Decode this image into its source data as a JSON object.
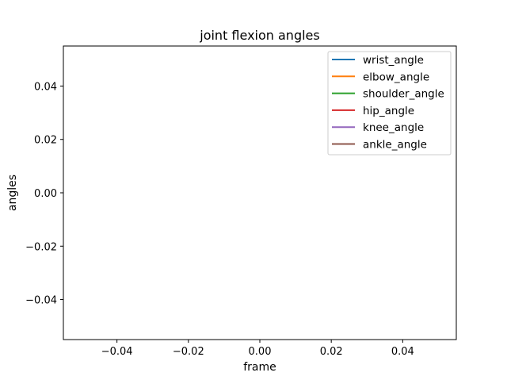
{
  "chart_data": {
    "type": "line",
    "title": "joint flexion angles",
    "xlabel": "frame",
    "ylabel": "angles",
    "xlim": [
      -0.055,
      0.055
    ],
    "ylim": [
      -0.055,
      0.055
    ],
    "xticks": [
      -0.04,
      -0.02,
      0.0,
      0.02,
      0.04
    ],
    "yticks": [
      -0.04,
      -0.02,
      0.0,
      0.02,
      0.04
    ],
    "xtick_labels": [
      "−0.04",
      "−0.02",
      "0.00",
      "0.02",
      "0.04"
    ],
    "ytick_labels": [
      "−0.04",
      "−0.02",
      "0.00",
      "0.02",
      "0.04"
    ],
    "grid": false,
    "legend_position": "top-right",
    "series": [
      {
        "name": "wrist_angle",
        "color": "#1f77b4",
        "x": [],
        "y": []
      },
      {
        "name": "elbow_angle",
        "color": "#ff7f0e",
        "x": [],
        "y": []
      },
      {
        "name": "shoulder_angle",
        "color": "#2ca02c",
        "x": [],
        "y": []
      },
      {
        "name": "hip_angle",
        "color": "#d62728",
        "x": [],
        "y": []
      },
      {
        "name": "knee_angle",
        "color": "#9467bd",
        "x": [],
        "y": []
      },
      {
        "name": "ankle_angle",
        "color": "#8c564b",
        "x": [],
        "y": []
      }
    ]
  }
}
